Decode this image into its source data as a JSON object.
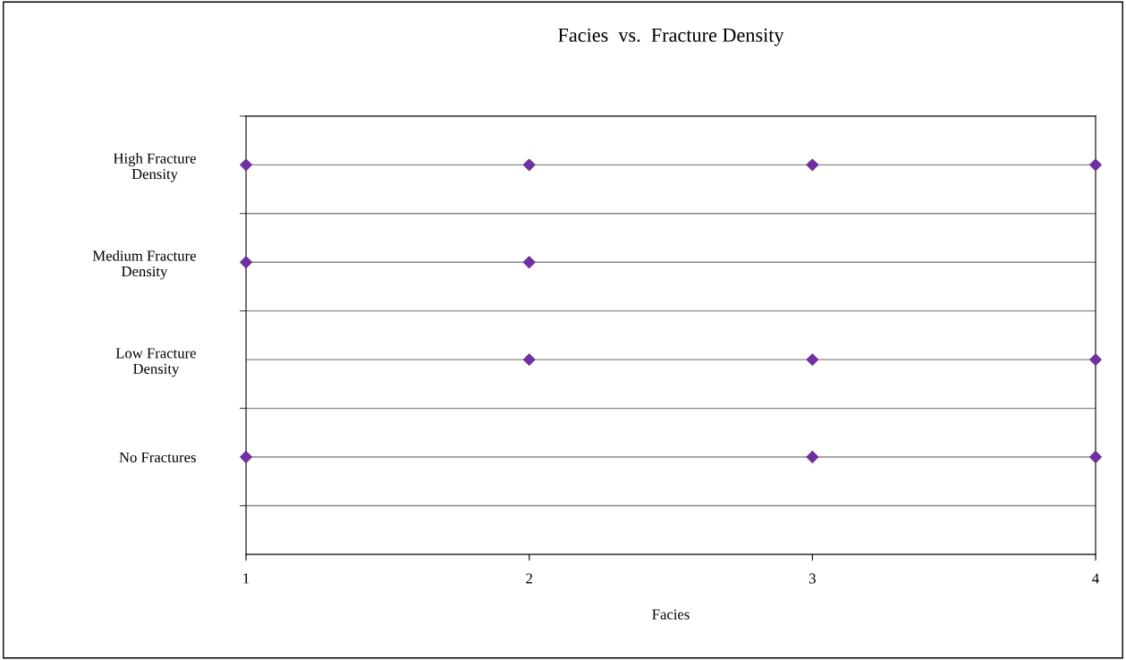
{
  "chart_data": {
    "type": "scatter",
    "orientation": "horizontal",
    "title": "Facies  vs.  Fracture Density",
    "xlabel": "Facies",
    "categories": [
      "High Fracture\nDensity",
      "Medium Fracture\nDensity",
      "Low Fracture\nDensity",
      "No Fractures"
    ],
    "series": [
      {
        "color": "#7030a0",
        "values": [
          1,
          1,
          null,
          1
        ]
      },
      {
        "color": "#7030a0",
        "values": [
          2,
          2,
          2,
          null
        ]
      },
      {
        "color": "#7030a0",
        "values": [
          3,
          null,
          3,
          3
        ]
      },
      {
        "color": "#7030a0",
        "values": [
          4,
          null,
          4,
          4
        ]
      }
    ],
    "xlim": [
      1,
      4
    ],
    "xticks": [
      1,
      2,
      3,
      4
    ],
    "grid": "y",
    "marker": "diamond",
    "legend": false
  }
}
